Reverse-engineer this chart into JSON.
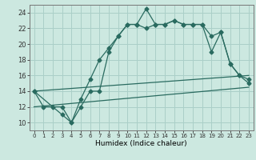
{
  "title": "",
  "xlabel": "Humidex (Indice chaleur)",
  "bg_color": "#cce8e0",
  "grid_color": "#aacfc8",
  "line_color": "#2a6b60",
  "xlim": [
    -0.5,
    23.5
  ],
  "ylim": [
    9,
    25
  ],
  "xtick_labels": [
    "0",
    "1",
    "2",
    "3",
    "4",
    "5",
    "6",
    "7",
    "8",
    "9",
    "10",
    "11",
    "12",
    "13",
    "14",
    "15",
    "16",
    "17",
    "18",
    "19",
    "20",
    "21",
    "22",
    "23"
  ],
  "xtick_vals": [
    0,
    1,
    2,
    3,
    4,
    5,
    6,
    7,
    8,
    9,
    10,
    11,
    12,
    13,
    14,
    15,
    16,
    17,
    18,
    19,
    20,
    21,
    22,
    23
  ],
  "ytick_vals": [
    10,
    12,
    14,
    16,
    18,
    20,
    22,
    24
  ],
  "series1_x": [
    0,
    1,
    2,
    3,
    4,
    5,
    6,
    7,
    8,
    9,
    10,
    11,
    12,
    13,
    14,
    15,
    16,
    17,
    18,
    19,
    20,
    21,
    22,
    23
  ],
  "series1_y": [
    14,
    12,
    12,
    12,
    10,
    13,
    15.5,
    18,
    19.5,
    21,
    22.5,
    22.5,
    24.5,
    22.5,
    22.5,
    23,
    22.5,
    22.5,
    22.5,
    21,
    21.5,
    17.5,
    16,
    15
  ],
  "series2_x": [
    0,
    3,
    4,
    5,
    6,
    7,
    8,
    9,
    10,
    11,
    12,
    13,
    14,
    15,
    16,
    17,
    18,
    19,
    20,
    21,
    22,
    23
  ],
  "series2_y": [
    14,
    11,
    10,
    12,
    14,
    14,
    19,
    21,
    22.5,
    22.5,
    22,
    22.5,
    22.5,
    23,
    22.5,
    22.5,
    22.5,
    19,
    21.5,
    17.5,
    16,
    15.5
  ],
  "series3_x": [
    0,
    23
  ],
  "series3_y": [
    12,
    14.5
  ],
  "series4_x": [
    0,
    23
  ],
  "series4_y": [
    14,
    16
  ]
}
